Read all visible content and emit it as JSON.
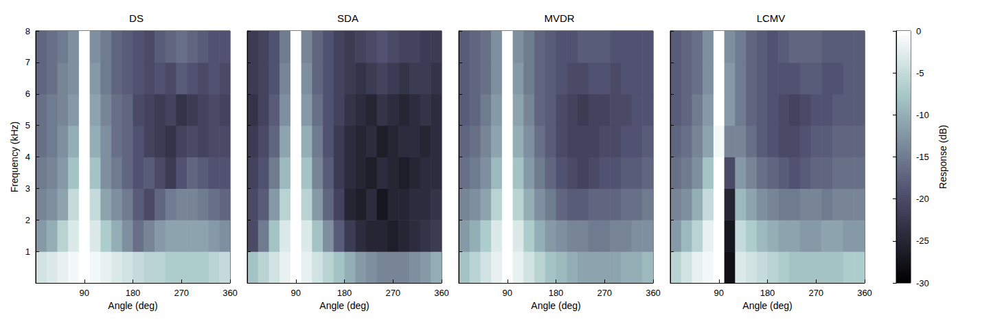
{
  "chart_data": {
    "type": "heatmap",
    "colorbar": {
      "label": "Response (dB)",
      "range": [
        -30,
        0
      ],
      "ticks": [
        -30,
        -25,
        -20,
        -15,
        -10,
        -5,
        0
      ]
    },
    "panels": [
      {
        "title": "DS",
        "x_label": "Angle (deg)",
        "y_label": "Frequency (kHz)",
        "xlim": [
          0,
          360
        ],
        "xticks": [
          90,
          180,
          270,
          360
        ],
        "ylim": [
          0,
          8
        ],
        "yticks": [
          1,
          2,
          3,
          4,
          5,
          6,
          7,
          8
        ],
        "x": [
          10,
          30,
          50,
          70,
          90,
          110,
          130,
          150,
          170,
          190,
          210,
          230,
          250,
          270,
          290,
          310,
          330,
          350
        ],
        "y": [
          0.5,
          1.5,
          2.5,
          3.5,
          4.5,
          5.5,
          6.5,
          7.5
        ],
        "cells": [
          [
            -4,
            -3,
            -2,
            -1,
            0,
            -1,
            -2,
            -3,
            -4,
            -5,
            -6,
            -6,
            -7,
            -7,
            -7,
            -7,
            -6,
            -5
          ],
          [
            -12,
            -10,
            -6,
            -3,
            0,
            -3,
            -7,
            -10,
            -13,
            -16,
            -14,
            -12,
            -11,
            -11,
            -11,
            -11,
            -12,
            -13
          ],
          [
            -14,
            -13,
            -11,
            -5,
            0,
            -5,
            -11,
            -13,
            -15,
            -18,
            -20,
            -17,
            -15,
            -14,
            -14,
            -15,
            -16,
            -17
          ],
          [
            -15,
            -14,
            -12,
            -8,
            0,
            -8,
            -13,
            -15,
            -17,
            -19,
            -18,
            -20,
            -22,
            -19,
            -17,
            -18,
            -19,
            -19
          ],
          [
            -16,
            -15,
            -13,
            -10,
            0,
            -10,
            -13,
            -16,
            -17,
            -19,
            -21,
            -22,
            -23,
            -21,
            -20,
            -21,
            -20,
            -20
          ],
          [
            -16,
            -15,
            -14,
            -12,
            0,
            -11,
            -14,
            -16,
            -17,
            -20,
            -21,
            -22,
            -21,
            -23,
            -22,
            -21,
            -20,
            -21
          ],
          [
            -17,
            -16,
            -14,
            -13,
            0,
            -12,
            -15,
            -17,
            -18,
            -19,
            -20,
            -19,
            -20,
            -18,
            -19,
            -20,
            -19,
            -20
          ],
          [
            -17,
            -16,
            -15,
            -13,
            0,
            -13,
            -15,
            -17,
            -18,
            -19,
            -20,
            -18,
            -17,
            -16,
            -17,
            -18,
            -19,
            -19
          ]
        ]
      },
      {
        "title": "SDA",
        "x_label": "Angle (deg)",
        "tick_labels": "x",
        "xlim": [
          0,
          360
        ],
        "xticks": [
          90,
          180,
          270,
          360
        ],
        "ylim": [
          0,
          8
        ],
        "yticks": [
          1,
          2,
          3,
          4,
          5,
          6,
          7,
          8
        ],
        "x": [
          10,
          30,
          50,
          70,
          90,
          110,
          130,
          150,
          170,
          190,
          210,
          230,
          250,
          270,
          290,
          310,
          330,
          350
        ],
        "y": [
          0.5,
          1.5,
          2.5,
          3.5,
          4.5,
          5.5,
          6.5,
          7.5
        ],
        "cells": [
          [
            -8,
            -6,
            -4,
            -2,
            0,
            -2,
            -4,
            -6,
            -8,
            -10,
            -12,
            -13,
            -14,
            -14,
            -14,
            -13,
            -12,
            -10
          ],
          [
            -20,
            -15,
            -8,
            -3,
            0,
            -3,
            -8,
            -13,
            -18,
            -22,
            -24,
            -25,
            -25,
            -26,
            -25,
            -24,
            -23,
            -22
          ],
          [
            -20,
            -18,
            -12,
            -6,
            0,
            -6,
            -12,
            -17,
            -21,
            -25,
            -26,
            -24,
            -27,
            -25,
            -25,
            -24,
            -24,
            -23
          ],
          [
            -21,
            -19,
            -15,
            -9,
            0,
            -8,
            -14,
            -18,
            -22,
            -24,
            -25,
            -26,
            -24,
            -25,
            -26,
            -25,
            -24,
            -24
          ],
          [
            -22,
            -20,
            -17,
            -11,
            0,
            -10,
            -15,
            -19,
            -22,
            -24,
            -25,
            -24,
            -26,
            -25,
            -24,
            -24,
            -25,
            -24
          ],
          [
            -23,
            -21,
            -18,
            -13,
            0,
            -12,
            -16,
            -19,
            -21,
            -23,
            -24,
            -25,
            -23,
            -24,
            -25,
            -24,
            -23,
            -24
          ],
          [
            -22,
            -21,
            -19,
            -14,
            0,
            -13,
            -17,
            -19,
            -21,
            -22,
            -23,
            -22,
            -21,
            -22,
            -23,
            -22,
            -22,
            -23
          ],
          [
            -22,
            -21,
            -19,
            -15,
            0,
            -14,
            -17,
            -19,
            -21,
            -22,
            -21,
            -20,
            -19,
            -20,
            -21,
            -21,
            -22,
            -22
          ]
        ]
      },
      {
        "title": "MVDR",
        "x_label": "Angle (deg)",
        "tick_labels": "x",
        "xlim": [
          0,
          360
        ],
        "xticks": [
          90,
          180,
          270,
          360
        ],
        "ylim": [
          0,
          8
        ],
        "yticks": [
          1,
          2,
          3,
          4,
          5,
          6,
          7,
          8
        ],
        "x": [
          10,
          30,
          50,
          70,
          90,
          110,
          130,
          150,
          170,
          190,
          210,
          230,
          250,
          270,
          290,
          310,
          330,
          350
        ],
        "y": [
          0.5,
          1.5,
          2.5,
          3.5,
          4.5,
          5.5,
          6.5,
          7.5
        ],
        "cells": [
          [
            -8,
            -6,
            -4,
            -2,
            0,
            -2,
            -4,
            -6,
            -8,
            -9,
            -10,
            -11,
            -11,
            -11,
            -11,
            -10,
            -10,
            -9
          ],
          [
            -12,
            -10,
            -7,
            -3,
            0,
            -3,
            -7,
            -10,
            -12,
            -13,
            -14,
            -14,
            -15,
            -15,
            -14,
            -14,
            -13,
            -13
          ],
          [
            -14,
            -13,
            -11,
            -6,
            0,
            -6,
            -10,
            -13,
            -15,
            -17,
            -18,
            -18,
            -17,
            -17,
            -17,
            -16,
            -16,
            -15
          ],
          [
            -16,
            -15,
            -13,
            -9,
            0,
            -8,
            -12,
            -15,
            -17,
            -19,
            -20,
            -21,
            -20,
            -19,
            -19,
            -18,
            -18,
            -17
          ],
          [
            -17,
            -16,
            -14,
            -11,
            0,
            -10,
            -13,
            -16,
            -18,
            -20,
            -21,
            -21,
            -21,
            -20,
            -20,
            -19,
            -19,
            -18
          ],
          [
            -18,
            -17,
            -15,
            -12,
            0,
            -11,
            -14,
            -17,
            -18,
            -20,
            -21,
            -22,
            -21,
            -21,
            -20,
            -20,
            -19,
            -19
          ],
          [
            -18,
            -17,
            -16,
            -13,
            0,
            -12,
            -15,
            -17,
            -18,
            -19,
            -20,
            -20,
            -19,
            -19,
            -20,
            -19,
            -19,
            -19
          ],
          [
            -18,
            -17,
            -16,
            -13,
            0,
            -13,
            -15,
            -17,
            -18,
            -19,
            -19,
            -18,
            -18,
            -18,
            -19,
            -19,
            -19,
            -19
          ]
        ]
      },
      {
        "title": "LCMV",
        "x_label": "Angle (deg)",
        "tick_labels": "x",
        "xlim": [
          0,
          360
        ],
        "xticks": [
          90,
          180,
          270,
          360
        ],
        "ylim": [
          0,
          8
        ],
        "yticks": [
          1,
          2,
          3,
          4,
          5,
          6,
          7,
          8
        ],
        "x": [
          10,
          30,
          50,
          70,
          90,
          110,
          130,
          150,
          170,
          190,
          210,
          230,
          250,
          270,
          290,
          310,
          330,
          350
        ],
        "y": [
          0.5,
          1.5,
          2.5,
          3.5,
          4.5,
          5.5,
          6.5,
          7.5
        ],
        "cells": [
          [
            -6,
            -4,
            -2,
            -1,
            0,
            -28,
            -3,
            -4,
            -5,
            -6,
            -7,
            -8,
            -8,
            -8,
            -8,
            -8,
            -7,
            -7
          ],
          [
            -12,
            -9,
            -6,
            -2,
            0,
            -27,
            -5,
            -7,
            -9,
            -10,
            -11,
            -11,
            -12,
            -12,
            -11,
            -11,
            -12,
            -12
          ],
          [
            -14,
            -13,
            -10,
            -5,
            0,
            -25,
            -9,
            -11,
            -13,
            -14,
            -15,
            -15,
            -14,
            -14,
            -15,
            -14,
            -14,
            -14
          ],
          [
            -16,
            -15,
            -13,
            -8,
            0,
            -20,
            -12,
            -14,
            -16,
            -17,
            -18,
            -19,
            -18,
            -17,
            -17,
            -16,
            -16,
            -16
          ],
          [
            -17,
            -16,
            -14,
            -11,
            -1,
            -14,
            -14,
            -16,
            -18,
            -19,
            -20,
            -20,
            -19,
            -18,
            -18,
            -17,
            -17,
            -17
          ],
          [
            -18,
            -17,
            -15,
            -12,
            0,
            -12,
            -15,
            -17,
            -18,
            -19,
            -20,
            -21,
            -20,
            -19,
            -19,
            -18,
            -18,
            -18
          ],
          [
            -18,
            -17,
            -16,
            -13,
            0,
            -12,
            -15,
            -17,
            -18,
            -19,
            -19,
            -19,
            -18,
            -18,
            -19,
            -19,
            -18,
            -18
          ],
          [
            -18,
            -17,
            -16,
            -13,
            0,
            -13,
            -15,
            -17,
            -18,
            -19,
            -18,
            -17,
            -17,
            -17,
            -18,
            -18,
            -18,
            -18
          ]
        ]
      }
    ]
  }
}
